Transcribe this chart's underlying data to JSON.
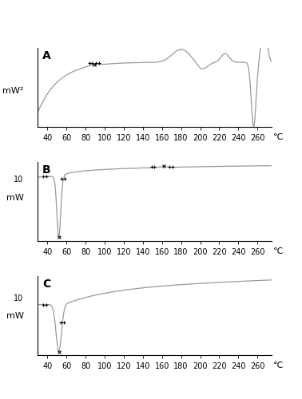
{
  "title_A": "A",
  "title_B": "B",
  "title_C": "C",
  "ylabel_A": "mW²",
  "ylabel_BC": "mW",
  "xlabel": "℃",
  "xticks": [
    40,
    60,
    80,
    100,
    120,
    140,
    160,
    180,
    200,
    220,
    240,
    260
  ],
  "xmin": 30,
  "xmax": 275,
  "line_color": "#999999",
  "background": "#ffffff",
  "tick_label_size": 7,
  "axis_label_size": 8,
  "panel_label_size": 10,
  "ylabel_label_10": "10"
}
